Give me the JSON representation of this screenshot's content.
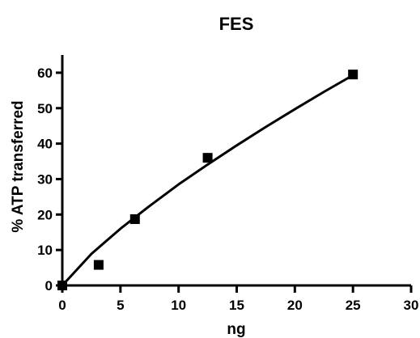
{
  "chart_data": {
    "type": "scatter",
    "title": "FES",
    "xlabel": "ng",
    "ylabel": "% ATP transferred",
    "xlim": [
      0,
      30
    ],
    "ylim": [
      0,
      65
    ],
    "x_ticks": [
      "0",
      "5",
      "10",
      "15",
      "20",
      "25",
      "30"
    ],
    "y_ticks": [
      "0",
      "10",
      "20",
      "30",
      "40",
      "50",
      "60"
    ],
    "grid": false,
    "legend": "none",
    "series": [
      {
        "marker": "square",
        "color": "#000000",
        "points": [
          {
            "x": 0,
            "y": 0
          },
          {
            "x": 3.125,
            "y": 5.8
          },
          {
            "x": 6.25,
            "y": 18.7
          },
          {
            "x": 12.5,
            "y": 36.0
          },
          {
            "x": 25,
            "y": 59.5
          }
        ]
      }
    ],
    "fit_curve": {
      "color": "#000000",
      "points": [
        {
          "x": 0,
          "y": 0
        },
        {
          "x": 2.5,
          "y": 8.9
        },
        {
          "x": 5,
          "y": 16.0
        },
        {
          "x": 7.5,
          "y": 22.4
        },
        {
          "x": 10,
          "y": 28.5
        },
        {
          "x": 12.5,
          "y": 34.1
        },
        {
          "x": 15,
          "y": 39.5
        },
        {
          "x": 17.5,
          "y": 44.7
        },
        {
          "x": 20,
          "y": 49.7
        },
        {
          "x": 22.5,
          "y": 54.6
        },
        {
          "x": 25,
          "y": 59.3
        }
      ]
    }
  }
}
